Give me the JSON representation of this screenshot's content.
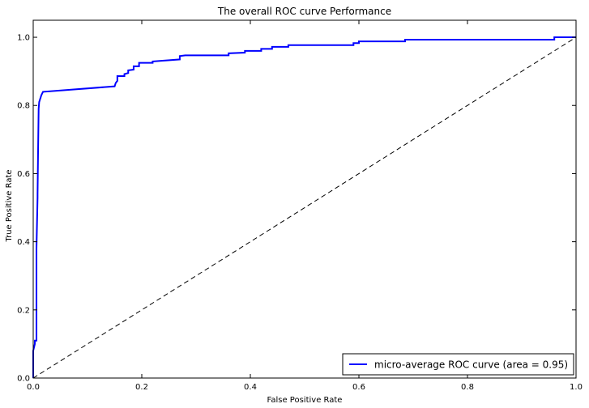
{
  "chart_data": {
    "type": "line",
    "title": "The overall ROC curve Performance",
    "xlabel": "False Positive Rate",
    "ylabel": "True Positive Rate",
    "xlim": [
      0.0,
      1.0
    ],
    "ylim": [
      0.0,
      1.05
    ],
    "xticks": [
      0.0,
      0.2,
      0.4,
      0.6,
      0.8,
      1.0
    ],
    "xtick_labels": [
      "0.0",
      "0.2",
      "0.4",
      "0.6",
      "0.8",
      "1.0"
    ],
    "yticks": [
      0.0,
      0.2,
      0.4,
      0.6,
      0.8,
      1.0
    ],
    "ytick_labels": [
      "0.0",
      "0.2",
      "0.4",
      "0.6",
      "0.8",
      "1.0"
    ],
    "grid": false,
    "legend_position": "lower right",
    "series": [
      {
        "name": "micro-average ROC curve (area = 0.95)",
        "color": "#0000ff",
        "style": "solid",
        "x": [
          0.0,
          0.0,
          0.003,
          0.003,
          0.006,
          0.006,
          0.008,
          0.008,
          0.009,
          0.01,
          0.011,
          0.013,
          0.015,
          0.018,
          0.15,
          0.152,
          0.155,
          0.155,
          0.168,
          0.168,
          0.175,
          0.175,
          0.185,
          0.185,
          0.195,
          0.195,
          0.22,
          0.22,
          0.27,
          0.27,
          0.28,
          0.36,
          0.36,
          0.39,
          0.39,
          0.42,
          0.42,
          0.44,
          0.44,
          0.47,
          0.47,
          0.59,
          0.59,
          0.6,
          0.6,
          0.685,
          0.685,
          0.96,
          0.96,
          1.0
        ],
        "y": [
          0.0,
          0.08,
          0.1,
          0.11,
          0.11,
          0.38,
          0.53,
          0.54,
          0.67,
          0.79,
          0.81,
          0.82,
          0.83,
          0.84,
          0.856,
          0.866,
          0.872,
          0.886,
          0.886,
          0.892,
          0.895,
          0.903,
          0.905,
          0.915,
          0.915,
          0.925,
          0.925,
          0.929,
          0.935,
          0.945,
          0.947,
          0.947,
          0.953,
          0.955,
          0.96,
          0.96,
          0.966,
          0.966,
          0.972,
          0.972,
          0.977,
          0.977,
          0.983,
          0.983,
          0.988,
          0.988,
          0.993,
          0.993,
          1.0,
          1.0
        ]
      },
      {
        "name": "",
        "color": "#000000",
        "style": "dashed",
        "x": [
          0.0,
          1.0
        ],
        "y": [
          0.0,
          1.0
        ]
      }
    ]
  }
}
